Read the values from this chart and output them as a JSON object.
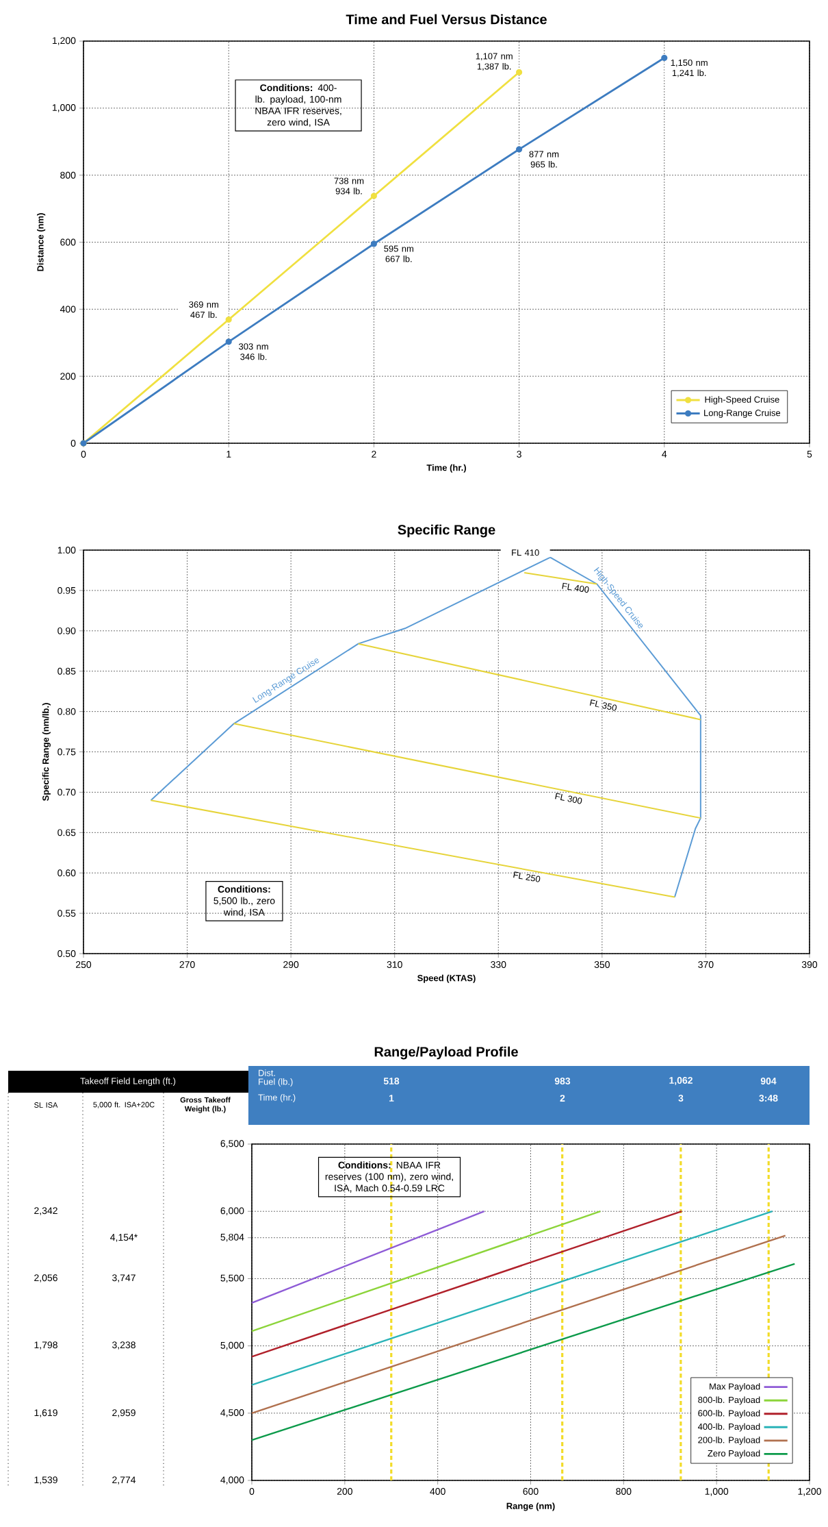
{
  "chart_data": [
    {
      "type": "line",
      "title": "Time and Fuel Versus Distance",
      "xlabel": "Time (hr.)",
      "ylabel": "Distance (nm)",
      "xlim": [
        0,
        5
      ],
      "ylim": [
        0,
        1200
      ],
      "xticks": [
        0,
        1,
        2,
        3,
        4,
        5
      ],
      "yticks": [
        0,
        200,
        400,
        600,
        800,
        {
          "value": 1000,
          "label": "1,000"
        },
        {
          "value": 1200,
          "label": "1,200"
        }
      ],
      "grid": true,
      "legend": "bottom right",
      "marker": "circle",
      "series": [
        {
          "name": "High-Speed Cruise",
          "color": "#f0e040",
          "x": [
            0,
            1,
            2,
            3
          ],
          "values": [
            0,
            369,
            738,
            1107
          ]
        },
        {
          "name": "Long-Range Cruise",
          "color": "#3d7cc0",
          "x": [
            0,
            1,
            2,
            3,
            4
          ],
          "values": [
            0,
            303,
            595,
            877,
            1150
          ]
        }
      ],
      "annotations": [
        "**Conditions:** 400-lb. payload, 100-nm NBAA IFR reserves, zero wind, ISA",
        {
          "text": "369 nm 467 lb.",
          "x": 1,
          "y": 369
        },
        {
          "text": "738 nm 934 lb.",
          "x": 2,
          "y": 738
        },
        {
          "text": "1,107 nm 1,387 lb.",
          "x": 3,
          "y": 1107
        },
        {
          "text": "303 nm 346 lb.",
          "x": 1,
          "y": 303
        },
        {
          "text": "595 nm 667 lb.",
          "x": 2,
          "y": 595
        },
        {
          "text": "877 nm 965 lb.",
          "x": 3,
          "y": 877
        },
        {
          "text": "1,150 nm 1,241 lb.",
          "x": 4,
          "y": 1150
        }
      ]
    },
    {
      "type": "line",
      "title": "Specific Range",
      "xlabel": "Speed (KTAS)",
      "ylabel": "Specific Range (nm/lb.)",
      "xlim": [
        250,
        390
      ],
      "ylim": [
        0.5,
        1.0
      ],
      "xticks": [
        250,
        270,
        290,
        310,
        330,
        350,
        370,
        390
      ],
      "yticks": [
        {
          "value": 0.5,
          "label": "0.50"
        },
        {
          "value": 0.55,
          "label": "0.55"
        },
        {
          "value": 0.6,
          "label": "0.60"
        },
        {
          "value": 0.65,
          "label": "0.65"
        },
        {
          "value": 0.7,
          "label": "0.70"
        },
        {
          "value": 0.75,
          "label": "0.75"
        },
        {
          "value": 0.8,
          "label": "0.80"
        },
        {
          "value": 0.85,
          "label": "0.85"
        },
        {
          "value": 0.9,
          "label": "0.90"
        },
        {
          "value": 0.95,
          "label": "0.95"
        },
        {
          "value": 1.0,
          "label": "1.00"
        }
      ],
      "grid": true,
      "series": [
        {
          "name": "Long-Range Cruise",
          "color": "#5b9bd5",
          "x": [
            263,
            279,
            303,
            312,
            340
          ],
          "values": [
            0.69,
            0.785,
            0.884,
            0.903,
            0.991
          ]
        },
        {
          "name": "High-Speed Cruise",
          "color": "#5b9bd5",
          "x": [
            340,
            349,
            369,
            369,
            368,
            364
          ],
          "values": [
            0.991,
            0.958,
            0.795,
            0.668,
            0.655,
            0.57
          ]
        },
        {
          "name": "FL 250",
          "color": "#e6d43a",
          "x": [
            263,
            364
          ],
          "values": [
            0.69,
            0.57
          ]
        },
        {
          "name": "FL 300",
          "color": "#e6d43a",
          "x": [
            279,
            369
          ],
          "values": [
            0.785,
            0.668
          ]
        },
        {
          "name": "FL 350",
          "color": "#e6d43a",
          "x": [
            303,
            369
          ],
          "values": [
            0.884,
            0.79
          ]
        },
        {
          "name": "FL 400",
          "color": "#e6d43a",
          "x": [
            335,
            349
          ],
          "values": [
            0.972,
            0.958
          ]
        }
      ],
      "annotations": [
        "**Conditions:** 5,500 lb., zero wind, ISA",
        {
          "text": "FL 410",
          "x": 340,
          "y": 0.991
        }
      ]
    },
    {
      "type": "line",
      "title": "Range/Payload Profile",
      "xlabel": "Range (nm)",
      "ylabel": "Gross Takeoff Weight (lb.)",
      "xlim": [
        0,
        1200
      ],
      "ylim": [
        4000,
        6500
      ],
      "xticks": [
        0,
        200,
        400,
        600,
        800,
        {
          "value": 1000,
          "label": "1,000"
        },
        {
          "value": 1200,
          "label": "1,200"
        }
      ],
      "yticks": [
        {
          "value": 4000,
          "label": "4,000"
        },
        {
          "value": 4500,
          "label": "4,500"
        },
        {
          "value": 5000,
          "label": "5,000"
        },
        {
          "value": 5500,
          "label": "5,500"
        },
        {
          "value": 5804,
          "label": "5,804"
        },
        {
          "value": 6000,
          "label": "6,000"
        },
        {
          "value": 6500,
          "label": "6,500"
        }
      ],
      "grid": true,
      "legend": "bottom right",
      "ref_lines": [
        {
          "axis": "x",
          "value": 300,
          "color": "#f2dc2a",
          "line_style": "dashed"
        },
        {
          "axis": "x",
          "value": 668,
          "color": "#f2dc2a",
          "line_style": "dashed"
        },
        {
          "axis": "x",
          "value": 923,
          "color": "#f2dc2a",
          "line_style": "dashed"
        },
        {
          "axis": "x",
          "value": 1112,
          "color": "#f2dc2a",
          "line_style": "dashed"
        }
      ],
      "series": [
        {
          "name": "Max Payload",
          "color": "#8e5bd6",
          "x": [
            0,
            500
          ],
          "values": [
            5320,
            6000
          ]
        },
        {
          "name": "800-lb. Payload",
          "color": "#8cd43a",
          "x": [
            0,
            750
          ],
          "values": [
            5110,
            6000
          ]
        },
        {
          "name": "600-lb. Payload",
          "color": "#b0202a",
          "x": [
            0,
            925
          ],
          "values": [
            4920,
            6000
          ]
        },
        {
          "name": "400-lb. Payload",
          "color": "#2ab3b8",
          "x": [
            0,
            1120
          ],
          "values": [
            4710,
            6000
          ]
        },
        {
          "name": "200-lb. Payload",
          "color": "#b0704e",
          "x": [
            0,
            1148
          ],
          "values": [
            4500,
            5820
          ]
        },
        {
          "name": "Zero Payload",
          "color": "#0c9a4a",
          "x": [
            0,
            1168
          ],
          "values": [
            4300,
            5610
          ]
        }
      ],
      "annotations": [
        "**Conditions:** NBAA IFR reserves (100 nm), zero wind, ISA, Mach 0.54-0.59 LRC"
      ]
    },
    {
      "type": "other",
      "title": "Takeoff Field Length (ft.)",
      "annotations": [
        "SL ISA",
        "5,000 ft. ISA+20C",
        "2,342",
        "2,056",
        "1,798",
        "1,619",
        "1,539",
        "4,154*",
        "3,747",
        "3,238",
        "2,959",
        "2,774"
      ]
    },
    {
      "type": "other",
      "annotations": [
        "Dist.",
        "Fuel (lb.)",
        "Time (hr.)",
        "518",
        "983",
        "1,062",
        "904",
        "1",
        "2",
        "3",
        "3:48"
      ]
    }
  ]
}
